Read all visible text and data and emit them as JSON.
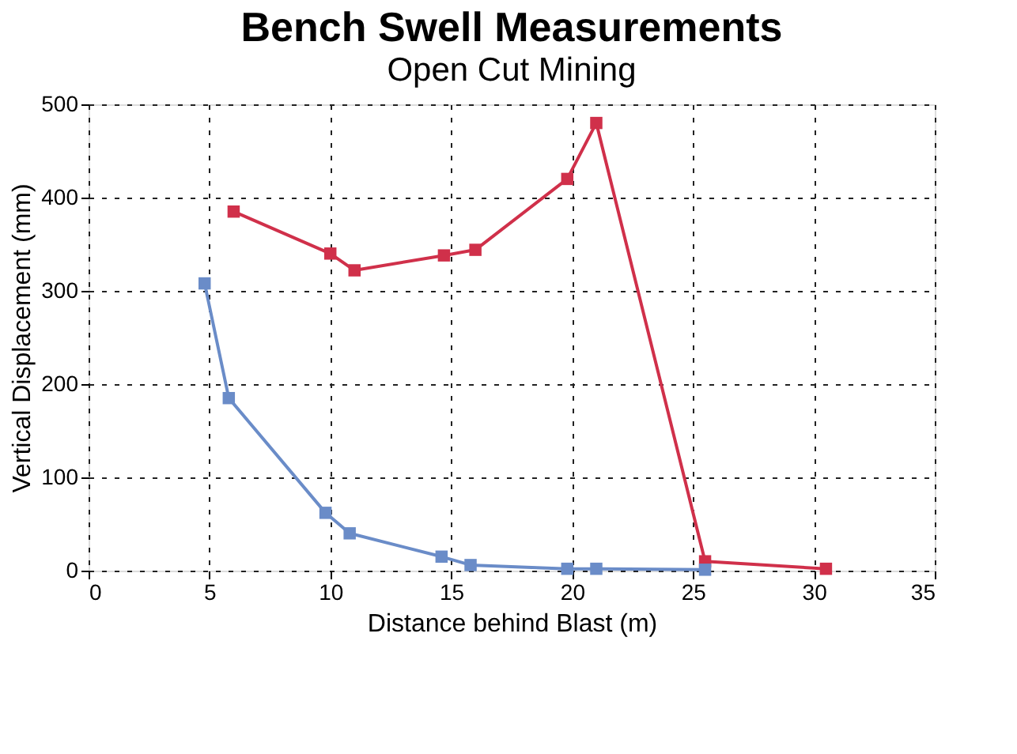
{
  "chart_data": {
    "type": "line",
    "title": "Bench Swell Measurements",
    "subtitle": "Open Cut Mining",
    "xlabel": "Distance behind Blast (m)",
    "ylabel": "Vertical Displacement (mm)",
    "xlim": [
      0,
      35
    ],
    "xticks": [
      0,
      5,
      10,
      15,
      20,
      25,
      30,
      35
    ],
    "ylim": [
      0,
      500
    ],
    "yticks": [
      0,
      100,
      200,
      300,
      400,
      500
    ],
    "grid": true,
    "marker": "square",
    "line_style": "solid",
    "legend": false,
    "series": [
      {
        "color": "#d0304a",
        "x": [
          6,
          10,
          11,
          14.7,
          16,
          19.8,
          21,
          25.5,
          30.5
        ],
        "values": [
          385,
          340,
          322,
          338,
          344,
          420,
          480,
          10,
          2
        ]
      },
      {
        "color": "#6a8cc8",
        "x": [
          4.8,
          5.8,
          9.8,
          10.8,
          14.6,
          15.8,
          19.8,
          21,
          25.5
        ],
        "values": [
          308,
          185,
          62,
          40,
          15,
          6,
          2,
          2,
          1
        ]
      }
    ]
  }
}
